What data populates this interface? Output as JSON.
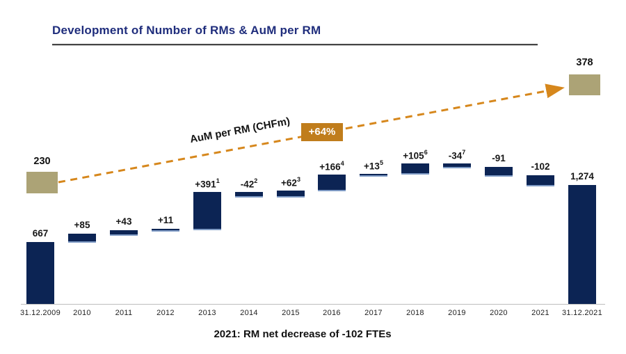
{
  "slide": {
    "title": "Development of Number of RMs & AuM per RM",
    "caption": "2021: RM net decrease of -102 FTEs"
  },
  "aum_line": {
    "label": "AuM per RM (CHFm)",
    "start_value": "230",
    "end_value": "378",
    "change_badge": "+64%"
  },
  "colors": {
    "navy_bar": "#0c2454",
    "title_navy": "#1f2d7c",
    "tan_box": "#aca376",
    "orange_dash": "#d6871c",
    "badge_orange": "#c07d1c"
  },
  "chart_data": {
    "type": "bar",
    "subtype": "waterfall",
    "categories": [
      "31.12.2009",
      "2010",
      "2011",
      "2012",
      "2013",
      "2014",
      "2015",
      "2016",
      "2017",
      "2018",
      "2019",
      "2020",
      "2021",
      "31.12.2021"
    ],
    "series": [
      {
        "name": "Number of RMs",
        "values": [
          667,
          85,
          43,
          11,
          391,
          -42,
          62,
          166,
          13,
          105,
          -34,
          -91,
          -102,
          1274
        ]
      }
    ],
    "bar_types": [
      "total",
      "delta",
      "delta",
      "delta",
      "delta",
      "delta",
      "delta",
      "delta",
      "delta",
      "delta",
      "delta",
      "delta",
      "delta",
      "total"
    ],
    "labels": [
      "667",
      "+85",
      "+43",
      "+11",
      "+391",
      "-42",
      "+62",
      "+166",
      "+13",
      "+105",
      "-34",
      "-91",
      "-102",
      "1,274"
    ],
    "footnotes": [
      "",
      "",
      "",
      "",
      "1",
      "2",
      "3",
      "4",
      "5",
      "6",
      "7",
      "",
      "",
      ""
    ],
    "start_total": 667,
    "end_total": 1274,
    "ylabel": "",
    "xlabel": "",
    "grid": false,
    "legend": false
  }
}
